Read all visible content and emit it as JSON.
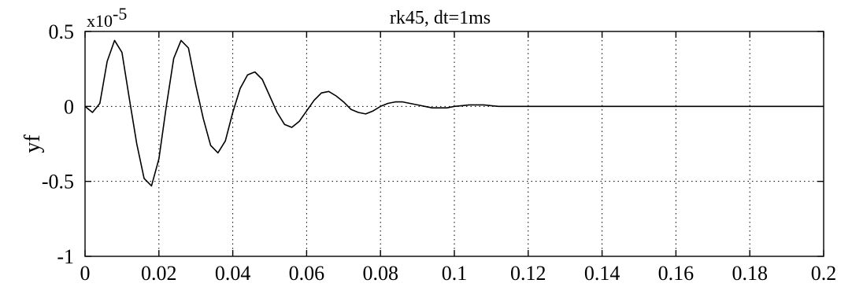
{
  "chart_data": {
    "type": "line",
    "title": "rk45, dt=1ms",
    "xlabel": "",
    "ylabel": "yf",
    "y_exponent_label": "x10",
    "y_exponent_power": "-5",
    "xlim": [
      0,
      0.2
    ],
    "ylim": [
      -1,
      0.5
    ],
    "grid": true,
    "x_ticks": [
      0,
      0.02,
      0.04,
      0.06,
      0.08,
      0.1,
      0.12,
      0.14,
      0.16,
      0.18,
      0.2
    ],
    "x_tick_labels": [
      "0",
      "0.02",
      "0.04",
      "0.06",
      "0.08",
      "0.1",
      "0.12",
      "0.14",
      "0.16",
      "0.18",
      "0.2"
    ],
    "y_ticks": [
      -1,
      -0.5,
      0,
      0.5
    ],
    "y_tick_labels": [
      "-1",
      "-0.5",
      "0",
      "0.5"
    ],
    "series": [
      {
        "x": [
          0,
          0.002,
          0.004,
          0.006,
          0.008,
          0.01,
          0.012,
          0.014,
          0.016,
          0.018,
          0.02,
          0.022,
          0.024,
          0.026,
          0.028,
          0.03,
          0.032,
          0.034,
          0.036,
          0.038,
          0.04,
          0.042,
          0.044,
          0.046,
          0.048,
          0.05,
          0.052,
          0.054,
          0.056,
          0.058,
          0.06,
          0.062,
          0.064,
          0.066,
          0.068,
          0.07,
          0.072,
          0.074,
          0.076,
          0.078,
          0.08,
          0.082,
          0.084,
          0.086,
          0.088,
          0.09,
          0.092,
          0.094,
          0.096,
          0.098,
          0.1,
          0.102,
          0.104,
          0.106,
          0.108,
          0.11,
          0.112,
          0.114,
          0.116,
          0.118,
          0.12,
          0.13,
          0.14,
          0.15,
          0.16,
          0.17,
          0.18,
          0.19,
          0.2
        ],
        "y": [
          0,
          -0.04,
          0.02,
          0.3,
          0.44,
          0.36,
          0.05,
          -0.25,
          -0.48,
          -0.53,
          -0.35,
          0.0,
          0.32,
          0.44,
          0.39,
          0.14,
          -0.08,
          -0.26,
          -0.31,
          -0.23,
          -0.04,
          0.12,
          0.21,
          0.23,
          0.18,
          0.07,
          -0.04,
          -0.12,
          -0.14,
          -0.1,
          -0.03,
          0.04,
          0.09,
          0.1,
          0.07,
          0.03,
          -0.02,
          -0.04,
          -0.05,
          -0.03,
          0.0,
          0.02,
          0.03,
          0.03,
          0.02,
          0.01,
          0.0,
          -0.01,
          -0.01,
          -0.01,
          0.0,
          0.005,
          0.01,
          0.01,
          0.01,
          0.005,
          0.0,
          0.0,
          0.0,
          0.0,
          0.0,
          0.0,
          0.0,
          0.0,
          0.0,
          0.0,
          0.0,
          0.0,
          0.0
        ]
      }
    ]
  }
}
